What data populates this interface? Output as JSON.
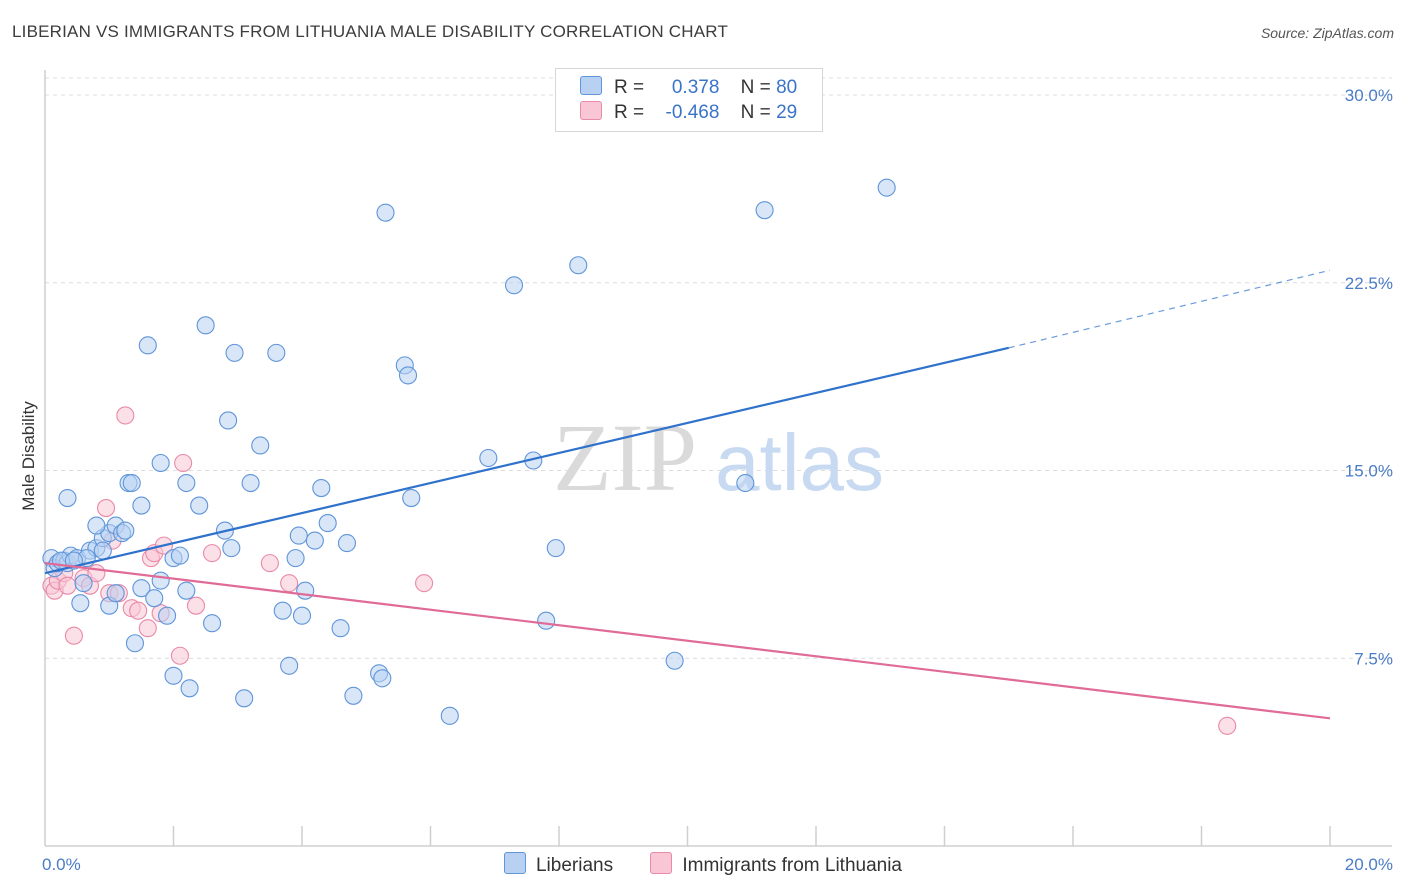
{
  "title": "LIBERIAN VS IMMIGRANTS FROM LITHUANIA MALE DISABILITY CORRELATION CHART",
  "source": "Source: ZipAtlas.com",
  "watermark": {
    "zip": "ZIP",
    "atlas": "atlas"
  },
  "legend": {
    "r_label": "R =",
    "n_label": "N =",
    "rows": [
      {
        "r": "0.378",
        "n": "80"
      },
      {
        "r": "-0.468",
        "n": "29"
      }
    ]
  },
  "colors": {
    "blue_fill": "#b8d1f3",
    "blue_stroke": "#5f95d9",
    "blue_line": "#2f72cc",
    "pink_fill": "#f9c6d6",
    "pink_stroke": "#e88aa8",
    "pink_line": "#e06b97"
  },
  "chart_data": {
    "type": "scatter",
    "title": "LIBERIAN VS IMMIGRANTS FROM LITHUANIA MALE DISABILITY CORRELATION CHART",
    "xlabel": "",
    "ylabel": "Male Disability",
    "xlim": [
      0,
      20
    ],
    "ylim": [
      0,
      31
    ],
    "x_tick_labels": [
      "0.0%",
      "20.0%"
    ],
    "y_ticks": [
      7.5,
      15.0,
      22.5,
      30.0
    ],
    "y_tick_labels": [
      "7.5%",
      "15.0%",
      "22.5%",
      "30.0%"
    ],
    "grid": "horizontal dashed",
    "legend_position": "top-center",
    "series": [
      {
        "name": "Liberians",
        "r": 0.378,
        "n": 80,
        "trend": {
          "x0": 0.0,
          "y0": 10.9,
          "x1": 15.0,
          "y1": 19.9,
          "dashed_to_x": 20.0,
          "dashed_to_y": 23.0
        },
        "points": [
          [
            0.1,
            11.5
          ],
          [
            0.15,
            11.1
          ],
          [
            0.2,
            11.3
          ],
          [
            0.3,
            11.4
          ],
          [
            0.35,
            11.3
          ],
          [
            0.4,
            11.6
          ],
          [
            0.5,
            11.5
          ],
          [
            0.6,
            10.5
          ],
          [
            0.7,
            11.8
          ],
          [
            0.8,
            11.9
          ],
          [
            0.9,
            12.3
          ],
          [
            1.0,
            12.5
          ],
          [
            1.1,
            12.8
          ],
          [
            1.2,
            12.5
          ],
          [
            1.3,
            14.5
          ],
          [
            1.5,
            13.6
          ],
          [
            0.35,
            13.9
          ],
          [
            0.8,
            12.8
          ],
          [
            0.9,
            11.8
          ],
          [
            1.0,
            9.6
          ],
          [
            1.1,
            10.1
          ],
          [
            0.55,
            9.7
          ],
          [
            1.5,
            10.3
          ],
          [
            1.7,
            9.9
          ],
          [
            1.8,
            10.6
          ],
          [
            1.9,
            9.2
          ],
          [
            1.4,
            8.1
          ],
          [
            1.6,
            20.0
          ],
          [
            1.8,
            15.3
          ],
          [
            2.0,
            11.5
          ],
          [
            2.1,
            11.6
          ],
          [
            2.2,
            14.5
          ],
          [
            2.2,
            10.2
          ],
          [
            2.4,
            13.6
          ],
          [
            2.5,
            20.8
          ],
          [
            2.6,
            8.9
          ],
          [
            2.8,
            12.6
          ],
          [
            2.85,
            17.0
          ],
          [
            2.9,
            11.9
          ],
          [
            2.95,
            19.7
          ],
          [
            2.0,
            6.8
          ],
          [
            2.25,
            6.3
          ],
          [
            3.1,
            5.9
          ],
          [
            3.2,
            14.5
          ],
          [
            3.35,
            16.0
          ],
          [
            3.6,
            19.7
          ],
          [
            3.7,
            9.4
          ],
          [
            3.8,
            7.2
          ],
          [
            3.9,
            11.5
          ],
          [
            3.95,
            12.4
          ],
          [
            4.0,
            9.2
          ],
          [
            4.05,
            10.2
          ],
          [
            4.2,
            12.2
          ],
          [
            4.3,
            14.3
          ],
          [
            4.4,
            12.9
          ],
          [
            4.6,
            8.7
          ],
          [
            4.7,
            12.1
          ],
          [
            4.8,
            6.0
          ],
          [
            5.2,
            6.9
          ],
          [
            5.25,
            6.7
          ],
          [
            5.3,
            25.3
          ],
          [
            5.6,
            19.2
          ],
          [
            5.65,
            18.8
          ],
          [
            5.7,
            13.9
          ],
          [
            6.3,
            5.2
          ],
          [
            6.9,
            15.5
          ],
          [
            7.3,
            22.4
          ],
          [
            7.6,
            15.4
          ],
          [
            7.8,
            9.0
          ],
          [
            7.95,
            11.9
          ],
          [
            8.3,
            23.2
          ],
          [
            9.8,
            7.4
          ],
          [
            10.9,
            14.5
          ],
          [
            11.2,
            25.4
          ],
          [
            13.1,
            26.3
          ],
          [
            1.35,
            14.5
          ],
          [
            0.25,
            11.4
          ],
          [
            1.25,
            12.6
          ],
          [
            0.65,
            11.5
          ],
          [
            0.45,
            11.4
          ]
        ]
      },
      {
        "name": "Immigrants from Lithuania",
        "r": -0.468,
        "n": 29,
        "trend": {
          "x0": 0.0,
          "y0": 11.3,
          "x1": 20.0,
          "y1": 5.1
        },
        "points": [
          [
            0.1,
            10.4
          ],
          [
            0.15,
            10.2
          ],
          [
            0.2,
            10.6
          ],
          [
            0.3,
            10.9
          ],
          [
            0.35,
            10.4
          ],
          [
            0.45,
            8.4
          ],
          [
            0.6,
            10.7
          ],
          [
            0.7,
            10.4
          ],
          [
            0.8,
            10.9
          ],
          [
            0.95,
            13.5
          ],
          [
            1.0,
            10.1
          ],
          [
            1.05,
            12.2
          ],
          [
            1.15,
            10.1
          ],
          [
            1.25,
            17.2
          ],
          [
            1.35,
            9.5
          ],
          [
            1.45,
            9.4
          ],
          [
            1.6,
            8.7
          ],
          [
            1.65,
            11.5
          ],
          [
            1.7,
            11.7
          ],
          [
            1.8,
            9.3
          ],
          [
            1.85,
            12.0
          ],
          [
            2.1,
            7.6
          ],
          [
            2.15,
            15.3
          ],
          [
            2.35,
            9.6
          ],
          [
            2.6,
            11.7
          ],
          [
            3.5,
            11.3
          ],
          [
            3.8,
            10.5
          ],
          [
            5.9,
            10.5
          ],
          [
            18.4,
            4.8
          ]
        ]
      }
    ]
  }
}
